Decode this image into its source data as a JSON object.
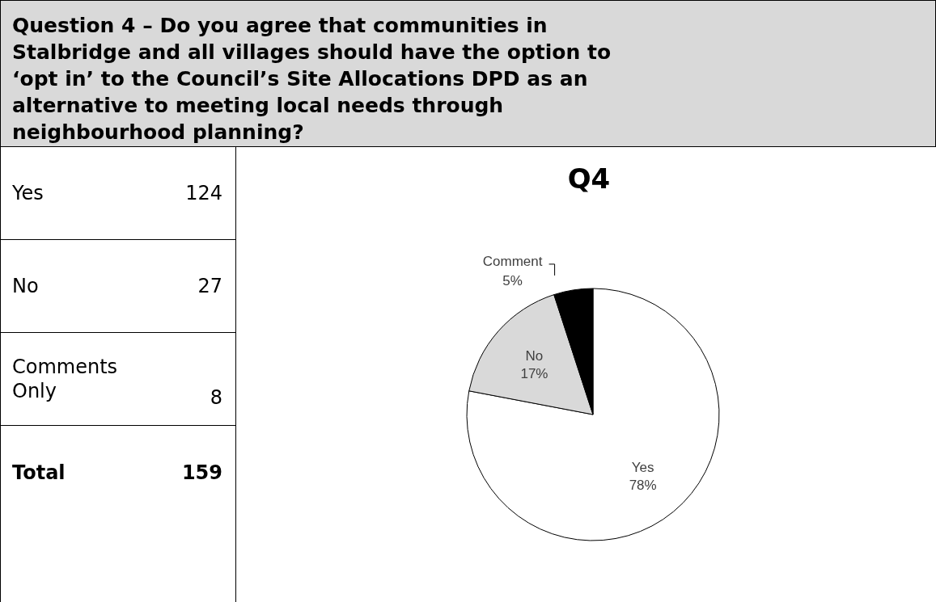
{
  "chart_data": [
    {
      "type": "other",
      "title": "Question 4 – Do you agree that communities in Stalbridge and all villages should have the option to ‘opt in’ to the Council’s Site Allocations DPD as an alternative to meeting local needs through neighbourhood planning?",
      "annotations": [
        "Yes",
        "124",
        "No",
        "27",
        "Comments Only",
        "8",
        "Total",
        "159"
      ]
    },
    {
      "type": "pie",
      "title": "Q4",
      "categories": [
        "Yes",
        "No",
        "Comment"
      ],
      "values": [
        78,
        17,
        5
      ],
      "colors": [
        "#ffffff",
        "#d9d9d9",
        "#000000"
      ],
      "value_labels": [
        "78%",
        "17%",
        "5%"
      ]
    }
  ]
}
